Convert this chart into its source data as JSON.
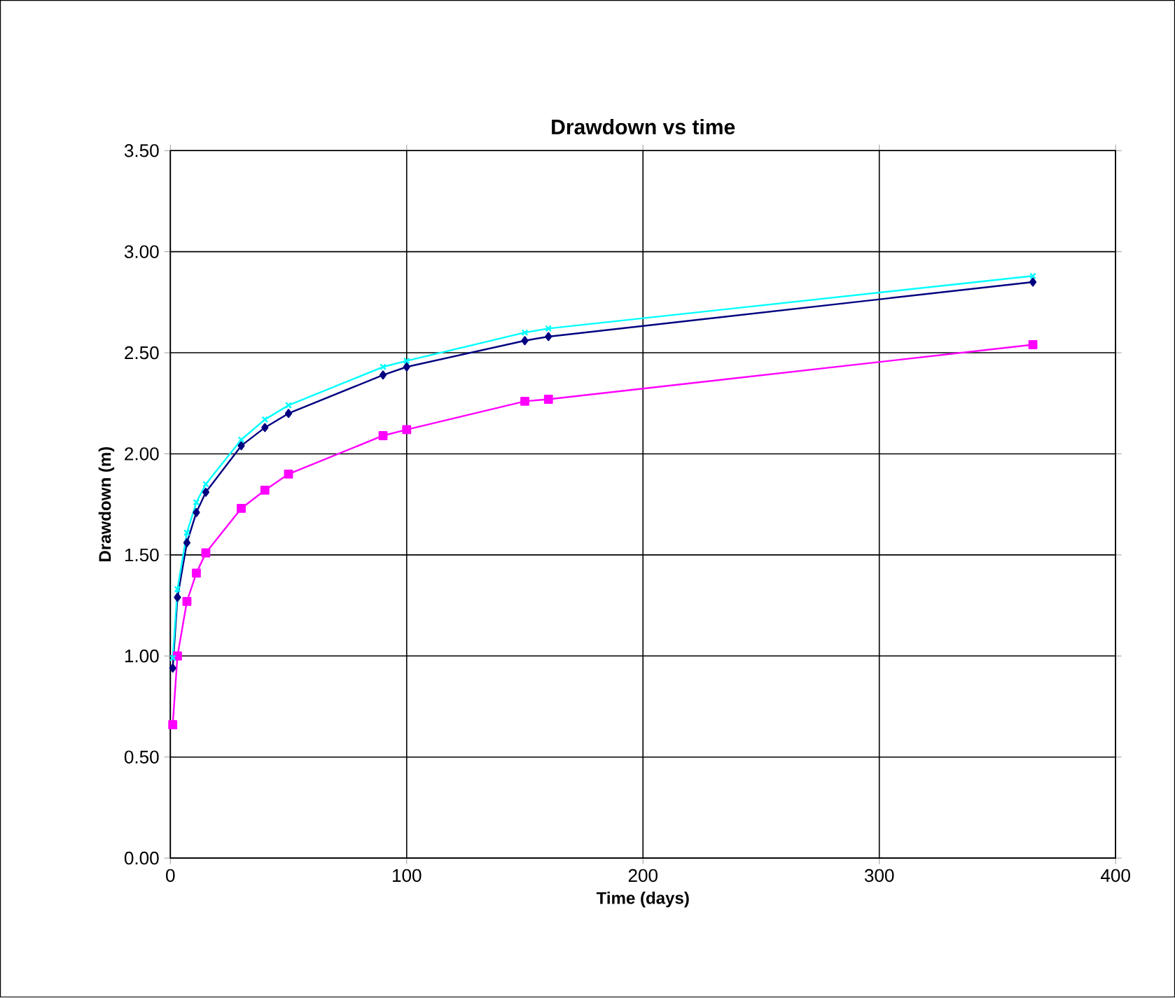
{
  "chart_data": {
    "type": "line",
    "title": "Drawdown vs time",
    "xlabel": "Time (days)",
    "ylabel": "Drawdown (m)",
    "x": [
      1,
      3,
      7,
      11,
      15,
      30,
      40,
      50,
      90,
      100,
      150,
      160,
      365
    ],
    "series": [
      {
        "color": "#000080",
        "marker": "diamond",
        "values": [
          0.94,
          1.29,
          1.56,
          1.71,
          1.81,
          2.04,
          2.13,
          2.2,
          2.39,
          2.43,
          2.56,
          2.58,
          2.85
        ]
      },
      {
        "color": "#ff00ff",
        "marker": "square",
        "values": [
          0.66,
          1.0,
          1.27,
          1.41,
          1.51,
          1.73,
          1.82,
          1.9,
          2.09,
          2.12,
          2.26,
          2.27,
          2.54
        ]
      },
      {
        "color": "#00ffff",
        "marker": "cross",
        "values": [
          0.99,
          1.33,
          1.61,
          1.76,
          1.85,
          2.07,
          2.17,
          2.24,
          2.43,
          2.46,
          2.6,
          2.62,
          2.88
        ]
      }
    ],
    "xlim": [
      0,
      400
    ],
    "xticks": [
      0,
      100,
      200,
      300,
      400
    ],
    "ylim": [
      0,
      3.5
    ],
    "yticks": [
      {
        "value": 0,
        "label": "0.00"
      },
      {
        "value": 0.5,
        "label": "0.50"
      },
      {
        "value": 1,
        "label": "1.00"
      },
      {
        "value": 1.5,
        "label": "1.50"
      },
      {
        "value": 2,
        "label": "2.00"
      },
      {
        "value": 2.5,
        "label": "2.50"
      },
      {
        "value": 3,
        "label": "3.00"
      },
      {
        "value": 3.5,
        "label": "3.50"
      }
    ],
    "grid": true,
    "line_style": "solid"
  }
}
